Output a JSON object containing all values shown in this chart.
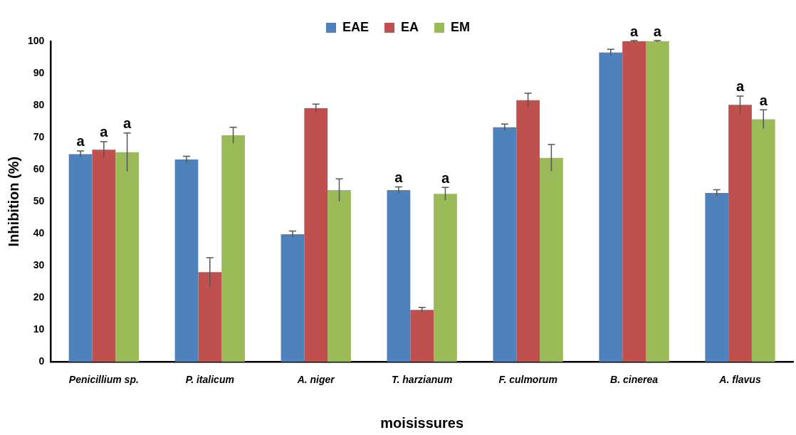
{
  "chart_data": {
    "type": "bar",
    "xlabel": "moisissures",
    "ylabel": "Inhibition (%)",
    "categories": [
      "Penicillium sp.",
      "P. italicum",
      "A. niger",
      "T. harzianum",
      "F. culmorum",
      "B. cinerea",
      "A. flavus"
    ],
    "ylim": [
      0,
      100
    ],
    "yticks": [
      0,
      10,
      20,
      30,
      40,
      50,
      60,
      70,
      80,
      90,
      100
    ],
    "grid": false,
    "legend": "top",
    "series": [
      {
        "name": "EAE",
        "color": "#4f81bd",
        "values": [
          64.8,
          63.1,
          39.8,
          53.6,
          73.2,
          96.5,
          52.7
        ],
        "errors": [
          1,
          1,
          1,
          1,
          1,
          1,
          1
        ],
        "value_labels": [
          "a",
          null,
          null,
          "a",
          null,
          null,
          null
        ]
      },
      {
        "name": "EA",
        "color": "#c0504d",
        "values": [
          66.2,
          28.0,
          79.1,
          16.2,
          81.6,
          100,
          80.2
        ],
        "errors": [
          2.5,
          4.5,
          1.3,
          0.8,
          2.2,
          0.2,
          2.7
        ],
        "value_labels": [
          "a",
          null,
          null,
          null,
          null,
          "a",
          "a"
        ]
      },
      {
        "name": "EM",
        "color": "#9bbb59",
        "values": [
          65.4,
          70.7,
          53.6,
          52.4,
          63.6,
          100,
          75.7
        ],
        "errors": [
          6,
          2.5,
          3.5,
          2,
          4.2,
          0.2,
          2.9
        ],
        "value_labels": [
          "a",
          null,
          null,
          "a",
          null,
          "a",
          "a"
        ]
      }
    ]
  }
}
